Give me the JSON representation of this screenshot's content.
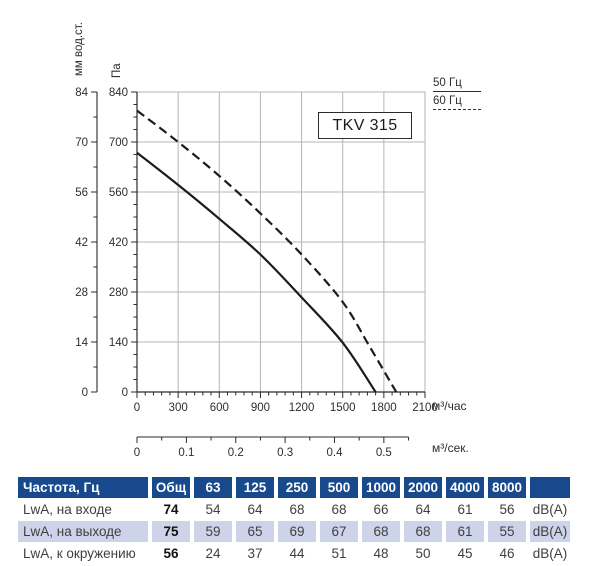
{
  "colors": {
    "header_bg": "#17498c",
    "row_highlight": "#cdd4e9",
    "grid": "#b5b5b5",
    "axis": "#2b2b2b",
    "curve": "#1c1c1c",
    "tick_text": "#2e2e2e"
  },
  "chart_data": {
    "type": "line",
    "title": "TKV 315",
    "legend": [
      {
        "label": "50 Гц",
        "style": "solid"
      },
      {
        "label": "60 Гц",
        "style": "dashed"
      }
    ],
    "y_axis_primary": {
      "title": "Па",
      "ticks": [
        0,
        140,
        280,
        420,
        560,
        700,
        840
      ],
      "minor_step": 35,
      "range": [
        0,
        840
      ]
    },
    "y_axis_secondary": {
      "title": "мм вод.ст.",
      "ticks": [
        0,
        14,
        28,
        42,
        56,
        70,
        84
      ],
      "range": [
        0,
        84
      ]
    },
    "x_axis_primary": {
      "unit": "м³/час",
      "ticks": [
        0,
        300,
        600,
        900,
        1200,
        1500,
        1800,
        2100
      ],
      "minor_step": 60,
      "range": [
        0,
        2100
      ]
    },
    "x_axis_secondary": {
      "unit": "м³/сек.",
      "ticks": [
        0,
        0.1,
        0.2,
        0.3,
        0.4,
        0.5
      ],
      "minor_step": 0.05,
      "extent": 0.55,
      "factor_to_primary": 3600
    },
    "grid": true,
    "series": [
      {
        "name": "50 Гц",
        "style": "solid",
        "points": [
          [
            0,
            670
          ],
          [
            300,
            580
          ],
          [
            600,
            485
          ],
          [
            900,
            385
          ],
          [
            1200,
            265
          ],
          [
            1500,
            138
          ],
          [
            1740,
            0
          ]
        ]
      },
      {
        "name": "60 Гц",
        "style": "dashed",
        "points": [
          [
            0,
            788
          ],
          [
            300,
            700
          ],
          [
            600,
            605
          ],
          [
            900,
            500
          ],
          [
            1200,
            385
          ],
          [
            1500,
            252
          ],
          [
            1700,
            125
          ],
          [
            1890,
            0
          ]
        ]
      }
    ]
  },
  "table": {
    "header": [
      "Частота, Гц",
      "Общ",
      "63",
      "125",
      "250",
      "500",
      "1000",
      "2000",
      "4000",
      "8000",
      ""
    ],
    "rows": [
      {
        "label": "LwA, на входе",
        "values": [
          "74",
          "54",
          "64",
          "68",
          "68",
          "66",
          "64",
          "61",
          "56"
        ],
        "unit": "dB(A)",
        "highlight": false
      },
      {
        "label": "LwA, на выходе",
        "values": [
          "75",
          "59",
          "65",
          "69",
          "67",
          "68",
          "68",
          "61",
          "55"
        ],
        "unit": "dB(A)",
        "highlight": true
      },
      {
        "label": "LwA, к окружению",
        "values": [
          "56",
          "24",
          "37",
          "44",
          "51",
          "48",
          "50",
          "45",
          "46"
        ],
        "unit": "dB(A)",
        "highlight": false
      }
    ]
  }
}
